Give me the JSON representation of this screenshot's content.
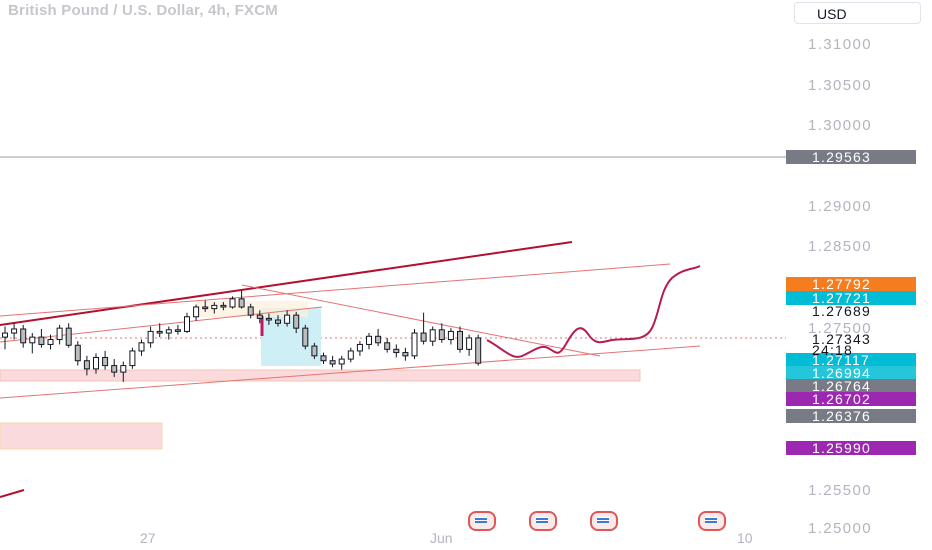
{
  "header": {
    "symbol_title": "British Pound / U.S. Dollar, 4h, FXCM",
    "currency": "USD"
  },
  "price_axis": {
    "labels": [
      "1.31000",
      "1.30500",
      "1.30000",
      "1.29000",
      "1.28500",
      "1.27500",
      "1.25500",
      "1.25000"
    ],
    "tags": [
      {
        "text": "1.29563",
        "color": "#787b86"
      },
      {
        "text": "1.27792",
        "color": "#f57c1f"
      },
      {
        "text": "1.27721",
        "color": "#00bcd4"
      },
      {
        "text": "1.27117",
        "color": "#00bcd4"
      },
      {
        "text": "1.26994",
        "color": "#26c6da"
      },
      {
        "text": "1.26764",
        "color": "#787b86"
      },
      {
        "text": "1.26702",
        "color": "#9c27b0"
      },
      {
        "text": "1.26376",
        "color": "#787b86"
      },
      {
        "text": "1.25990",
        "color": "#9c27b0"
      }
    ],
    "plain_values": [
      "1.27689",
      "1.27343"
    ],
    "countdown": "24:18"
  },
  "time_axis": {
    "labels": [
      "27",
      "Jun",
      "10"
    ]
  },
  "colors": {
    "bull_body": "#ffffff",
    "bear_body": "#bdbdbd",
    "candle_outline": "#131722",
    "trend_dark": "#b2102f",
    "trend_light": "#e57373",
    "projection": "#b71c50",
    "zone_pink": "#fadadd",
    "zone_cyan": "#cdeff5"
  },
  "icons": [
    "economic-event-icon",
    "economic-event-icon",
    "economic-event-icon",
    "economic-event-icon"
  ],
  "chart_data": {
    "type": "candlestick",
    "candles_ohlc": [
      [
        1.2735,
        1.2748,
        1.272,
        1.274
      ],
      [
        1.274,
        1.2752,
        1.2732,
        1.2745
      ],
      [
        1.2745,
        1.275,
        1.2722,
        1.2728
      ],
      [
        1.2728,
        1.274,
        1.2715,
        1.2735
      ],
      [
        1.2735,
        1.2745,
        1.2722,
        1.2726
      ],
      [
        1.2726,
        1.2738,
        1.272,
        1.2732
      ],
      [
        1.2732,
        1.275,
        1.2726,
        1.2746
      ],
      [
        1.2746,
        1.2752,
        1.2722,
        1.2725
      ],
      [
        1.2725,
        1.273,
        1.27,
        1.2706
      ],
      [
        1.2706,
        1.2712,
        1.2688,
        1.2696
      ],
      [
        1.2696,
        1.2715,
        1.269,
        1.271
      ],
      [
        1.271,
        1.2718,
        1.2695,
        1.27
      ],
      [
        1.27,
        1.2708,
        1.2686,
        1.2692
      ],
      [
        1.2692,
        1.2705,
        1.268,
        1.27
      ],
      [
        1.27,
        1.2722,
        1.2696,
        1.2718
      ],
      [
        1.2718,
        1.2732,
        1.2712,
        1.2728
      ],
      [
        1.2728,
        1.2748,
        1.2722,
        1.2742
      ],
      [
        1.2742,
        1.2752,
        1.2735,
        1.274
      ],
      [
        1.274,
        1.2748,
        1.2732,
        1.2744
      ],
      [
        1.2744,
        1.275,
        1.2738,
        1.2742
      ],
      [
        1.2742,
        1.2765,
        1.274,
        1.276
      ],
      [
        1.276,
        1.2775,
        1.2755,
        1.2772
      ],
      [
        1.2772,
        1.278,
        1.2766,
        1.277
      ],
      [
        1.277,
        1.2778,
        1.2764,
        1.2774
      ],
      [
        1.2774,
        1.2778,
        1.2768,
        1.2772
      ],
      [
        1.2772,
        1.2785,
        1.277,
        1.2782
      ],
      [
        1.2782,
        1.2792,
        1.277,
        1.2772
      ],
      [
        1.2772,
        1.2776,
        1.2758,
        1.2762
      ],
      [
        1.2762,
        1.2768,
        1.2752,
        1.2758
      ],
      [
        1.2758,
        1.2764,
        1.275,
        1.2756
      ],
      [
        1.2756,
        1.2762,
        1.2748,
        1.2752
      ],
      [
        1.2752,
        1.2768,
        1.2748,
        1.2762
      ],
      [
        1.2762,
        1.2766,
        1.274,
        1.2746
      ],
      [
        1.2746,
        1.275,
        1.272,
        1.2724
      ],
      [
        1.2724,
        1.2728,
        1.2708,
        1.2712
      ],
      [
        1.2712,
        1.2716,
        1.2702,
        1.2706
      ],
      [
        1.2706,
        1.2712,
        1.2698,
        1.2702
      ],
      [
        1.2702,
        1.2712,
        1.2695,
        1.2708
      ],
      [
        1.2708,
        1.2722,
        1.2704,
        1.2718
      ],
      [
        1.2718,
        1.273,
        1.2712,
        1.2726
      ],
      [
        1.2726,
        1.274,
        1.272,
        1.2736
      ],
      [
        1.2736,
        1.2745,
        1.2724,
        1.2728
      ],
      [
        1.2728,
        1.2734,
        1.2716,
        1.272
      ],
      [
        1.272,
        1.2726,
        1.271,
        1.2716
      ],
      [
        1.2716,
        1.2722,
        1.2706,
        1.2712
      ],
      [
        1.2712,
        1.2745,
        1.2708,
        1.274
      ],
      [
        1.274,
        1.2765,
        1.2726,
        1.273
      ],
      [
        1.273,
        1.2748,
        1.2724,
        1.2744
      ],
      [
        1.2744,
        1.2752,
        1.2728,
        1.2732
      ],
      [
        1.2732,
        1.2746,
        1.2726,
        1.2742
      ],
      [
        1.2742,
        1.2748,
        1.2716,
        1.272
      ],
      [
        1.272,
        1.2738,
        1.2712,
        1.2734
      ],
      [
        1.2734,
        1.2738,
        1.27,
        1.2703
      ]
    ],
    "ylim": [
      1.25,
      1.313
    ],
    "x_tick_labels": [
      "27",
      "Jun",
      "10"
    ]
  }
}
